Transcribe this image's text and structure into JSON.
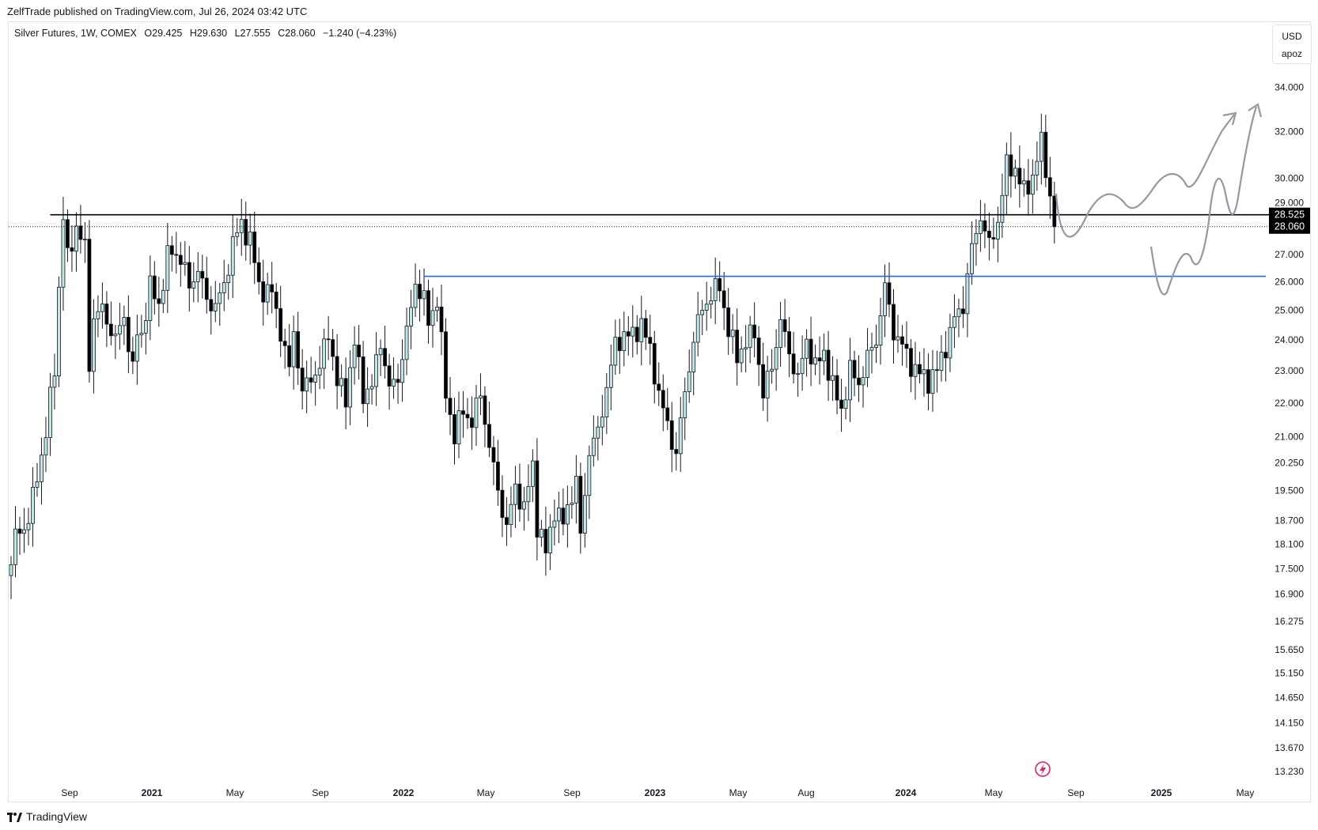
{
  "publisher_line": "ZelfTrade published on TradingView.com, Jul 26, 2024 03:42 UTC",
  "legend": {
    "symbol": "Silver Futures, 1W, COMEX",
    "open": "O29.425",
    "high": "H29.630",
    "low": "L27.555",
    "close": "C28.060",
    "change": "−1.240 (−4.23%)"
  },
  "currency_box": {
    "currency": "USD",
    "scale_mode": "apoz"
  },
  "footer_brand": "TradingView",
  "colors": {
    "up_fill": "#bfe7e3",
    "up_border": "#131722",
    "down_fill": "#000000",
    "resistance_line": "#000000",
    "support_line": "#2962ff",
    "projection_stroke": "#9598a1",
    "price_label_bg": "#000000"
  },
  "chart_data": {
    "type": "candlestick",
    "symbol": "Silver Futures",
    "interval": "1W",
    "exchange": "COMEX",
    "scale": "log",
    "y_ticks": [
      "34.000",
      "32.000",
      "30.000",
      "29.000",
      "27.000",
      "26.000",
      "25.000",
      "24.000",
      "23.000",
      "22.000",
      "21.000",
      "20.250",
      "19.500",
      "18.700",
      "18.100",
      "17.500",
      "16.900",
      "16.275",
      "15.650",
      "15.150",
      "14.650",
      "14.150",
      "13.670",
      "13.230"
    ],
    "x_ticks": [
      {
        "label": "Sep",
        "bold": false
      },
      {
        "label": "2021",
        "bold": true
      },
      {
        "label": "May",
        "bold": false
      },
      {
        "label": "Sep",
        "bold": false
      },
      {
        "label": "2022",
        "bold": true
      },
      {
        "label": "May",
        "bold": false
      },
      {
        "label": "Sep",
        "bold": false
      },
      {
        "label": "2023",
        "bold": true
      },
      {
        "label": "May",
        "bold": false
      },
      {
        "label": "Aug",
        "bold": false
      },
      {
        "label": "2024",
        "bold": true
      },
      {
        "label": "May",
        "bold": false
      },
      {
        "label": "Sep",
        "bold": false
      },
      {
        "label": "2025",
        "bold": true
      },
      {
        "label": "May",
        "bold": false
      }
    ],
    "horizontal_lines": [
      {
        "name": "resistance",
        "value": 28.525,
        "label": "28.525"
      },
      {
        "name": "support",
        "value": 26.2
      }
    ],
    "last_price": {
      "value": 28.06,
      "label": "28.060"
    },
    "close_path": [
      [
        0,
        17.6
      ],
      [
        1,
        18.3
      ],
      [
        4,
        18.7
      ],
      [
        8,
        21.1
      ],
      [
        10,
        23.1
      ],
      [
        12,
        28.5
      ],
      [
        13,
        26.8
      ],
      [
        15,
        28.1
      ],
      [
        17,
        27.2
      ],
      [
        18,
        23.2
      ],
      [
        19,
        24.8
      ],
      [
        21,
        25.0
      ],
      [
        24,
        24.0
      ],
      [
        26,
        24.8
      ],
      [
        28,
        23.0
      ],
      [
        29,
        24.2
      ],
      [
        30,
        24.2
      ],
      [
        32,
        25.8
      ],
      [
        34,
        25.2
      ],
      [
        36,
        26.9
      ],
      [
        37,
        27.1
      ],
      [
        39,
        26.9
      ],
      [
        41,
        25.8
      ],
      [
        43,
        26.5
      ],
      [
        45,
        25.3
      ],
      [
        47,
        25.2
      ],
      [
        49,
        25.8
      ],
      [
        51,
        27.5
      ],
      [
        53,
        28.1
      ],
      [
        55,
        27.6
      ],
      [
        57,
        25.8
      ],
      [
        60,
        25.6
      ],
      [
        62,
        24.3
      ],
      [
        64,
        23.0
      ],
      [
        65,
        24.3
      ],
      [
        67,
        22.3
      ],
      [
        69,
        22.8
      ],
      [
        71,
        23.1
      ],
      [
        73,
        24.3
      ],
      [
        75,
        22.6
      ],
      [
        77,
        22.2
      ],
      [
        79,
        23.9
      ],
      [
        81,
        22.3
      ],
      [
        83,
        22.5
      ],
      [
        85,
        24.0
      ],
      [
        87,
        22.4
      ],
      [
        89,
        22.8
      ],
      [
        91,
        24.2
      ],
      [
        93,
        26.0
      ],
      [
        95,
        25.3
      ],
      [
        96,
        24.6
      ],
      [
        98,
        25.4
      ],
      [
        100,
        22.3
      ],
      [
        102,
        21.0
      ],
      [
        104,
        21.8
      ],
      [
        106,
        21.4
      ],
      [
        108,
        22.3
      ],
      [
        110,
        20.7
      ],
      [
        112,
        19.5
      ],
      [
        114,
        18.5
      ],
      [
        116,
        19.6
      ],
      [
        118,
        19.0
      ],
      [
        120,
        20.2
      ],
      [
        121,
        18.6
      ],
      [
        123,
        17.9
      ],
      [
        125,
        19.0
      ],
      [
        127,
        18.6
      ],
      [
        128,
        19.1
      ],
      [
        130,
        19.7
      ],
      [
        131,
        18.3
      ],
      [
        133,
        20.6
      ],
      [
        135,
        21.1
      ],
      [
        137,
        22.5
      ],
      [
        139,
        23.8
      ],
      [
        141,
        24.2
      ],
      [
        143,
        24.1
      ],
      [
        145,
        24.6
      ],
      [
        147,
        23.6
      ],
      [
        149,
        22.3
      ],
      [
        151,
        21.3
      ],
      [
        153,
        20.5
      ],
      [
        155,
        22.3
      ],
      [
        157,
        24.0
      ],
      [
        159,
        25.1
      ],
      [
        161,
        25.5
      ],
      [
        163,
        25.9
      ],
      [
        165,
        24.3
      ],
      [
        167,
        23.5
      ],
      [
        169,
        23.9
      ],
      [
        171,
        24.3
      ],
      [
        173,
        22.2
      ],
      [
        175,
        23.2
      ],
      [
        177,
        24.6
      ],
      [
        179,
        23.6
      ],
      [
        181,
        22.7
      ],
      [
        183,
        24.0
      ],
      [
        185,
        23.1
      ],
      [
        187,
        23.6
      ],
      [
        189,
        22.5
      ],
      [
        191,
        21.8
      ],
      [
        193,
        23.0
      ],
      [
        195,
        22.6
      ],
      [
        197,
        23.4
      ],
      [
        199,
        24.0
      ],
      [
        201,
        25.8
      ],
      [
        203,
        24.3
      ],
      [
        205,
        23.8
      ],
      [
        207,
        23.2
      ],
      [
        209,
        22.9
      ],
      [
        211,
        22.7
      ],
      [
        213,
        23.0
      ],
      [
        215,
        23.8
      ],
      [
        217,
        24.7
      ],
      [
        219,
        25.2
      ],
      [
        221,
        27.2
      ],
      [
        223,
        28.5
      ],
      [
        225,
        27.3
      ],
      [
        227,
        28.3
      ],
      [
        229,
        30.5
      ],
      [
        231,
        30.4
      ],
      [
        233,
        29.4
      ],
      [
        235,
        30.1
      ],
      [
        237,
        31.5
      ],
      [
        239,
        29.3
      ],
      [
        240,
        28.06
      ]
    ]
  }
}
